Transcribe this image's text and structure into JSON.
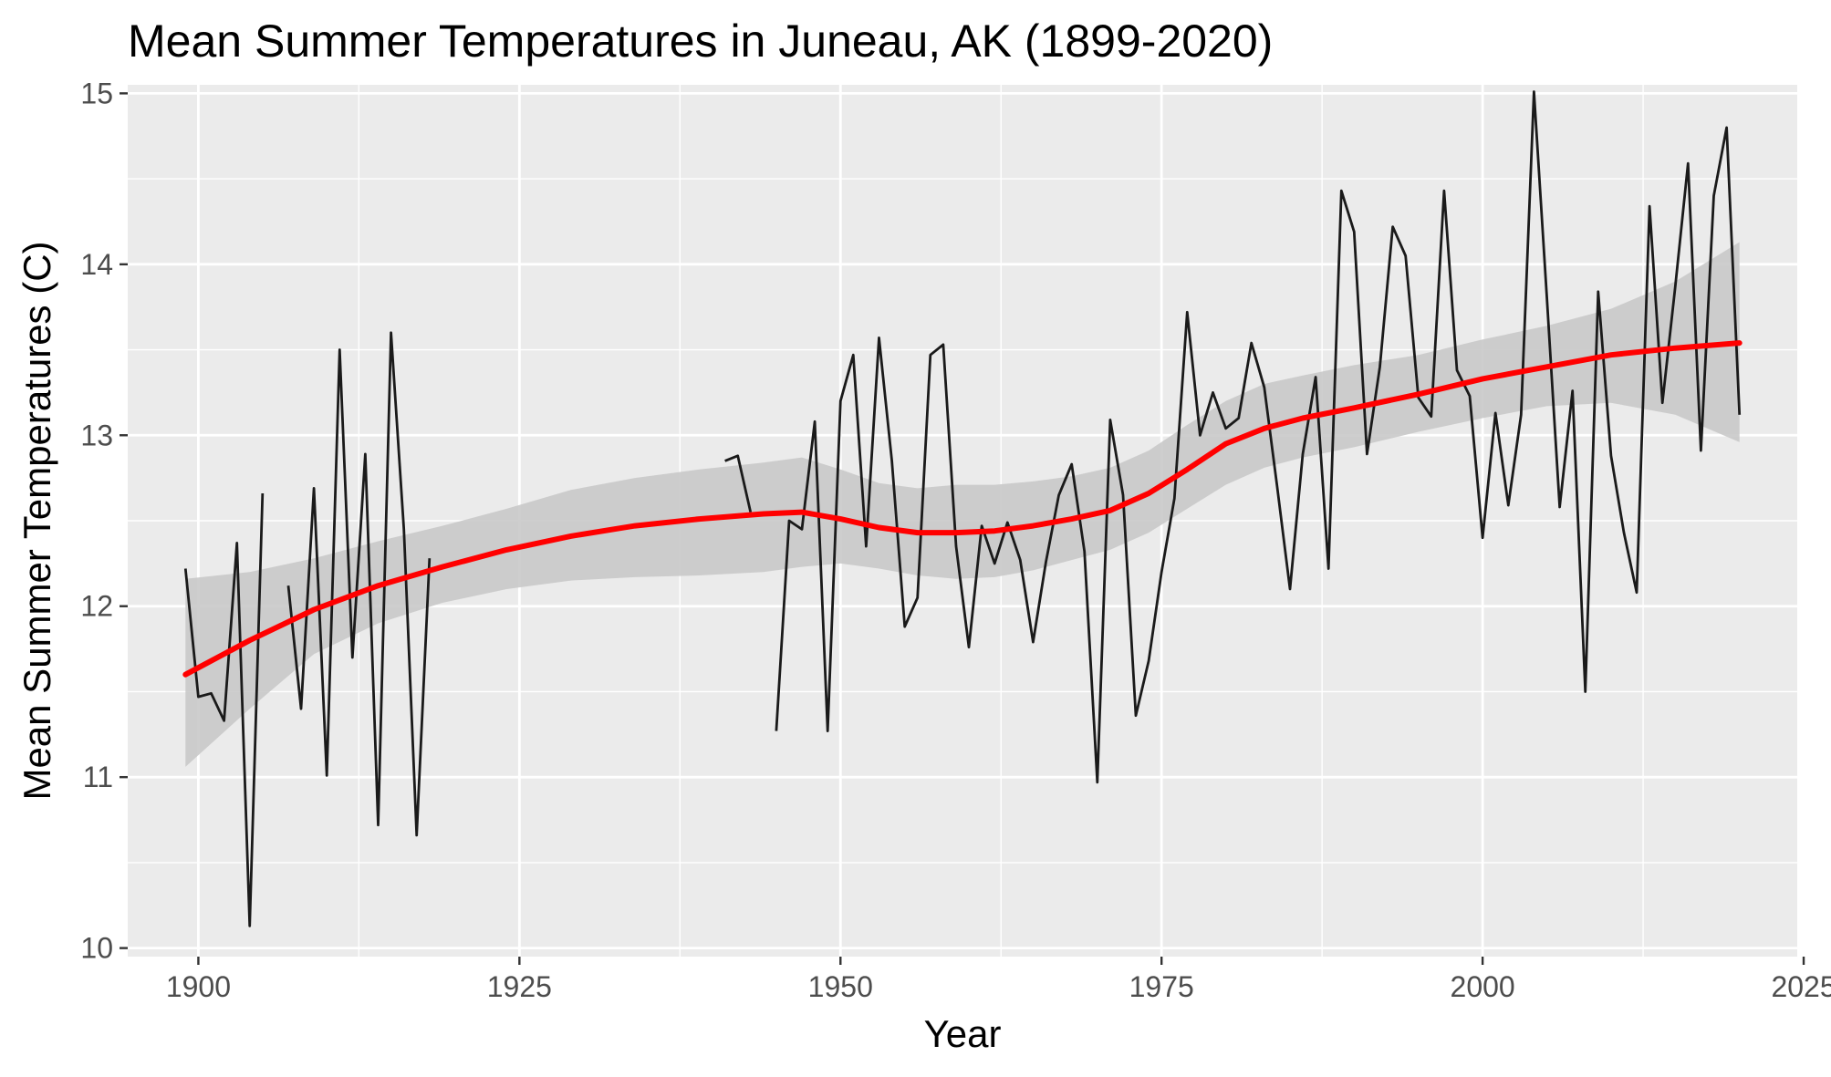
{
  "chart_data": {
    "type": "line",
    "title": "Mean Summer Temperatures in Juneau, AK (1899-2020)",
    "xlabel": "Year",
    "ylabel": "Mean Summer Temperatures (C)",
    "xlim": [
      1894.5,
      2024.5
    ],
    "ylim": [
      9.95,
      15.05
    ],
    "x_ticks": [
      1900,
      1925,
      1950,
      1975,
      2000,
      2025
    ],
    "y_ticks": [
      10,
      11,
      12,
      13,
      14,
      15
    ],
    "x_tick_labels": [
      "1900",
      "1925",
      "1950",
      "1975",
      "2000",
      "2025"
    ],
    "y_tick_labels": [
      "10",
      "11",
      "12",
      "13",
      "14",
      "15"
    ],
    "grid": true,
    "legend": "none",
    "colors": {
      "panel_background": "#ebebeb",
      "grid": "#ffffff",
      "line": "#1a1a1a",
      "smooth": "#ff0000",
      "ribbon": "#c9c9c9"
    },
    "series": [
      {
        "kind": "observed",
        "segments": [
          [
            [
              1899,
              12.22
            ],
            [
              1900,
              11.47
            ],
            [
              1901,
              11.49
            ],
            [
              1902,
              11.33
            ],
            [
              1903,
              12.37
            ],
            [
              1904,
              10.13
            ],
            [
              1905,
              12.66
            ]
          ],
          [
            [
              1907,
              12.12
            ],
            [
              1908,
              11.4
            ],
            [
              1909,
              12.69
            ],
            [
              1910,
              11.01
            ],
            [
              1911,
              13.5
            ],
            [
              1912,
              11.7
            ],
            [
              1913,
              12.89
            ],
            [
              1914,
              10.72
            ],
            [
              1915,
              13.6
            ],
            [
              1916,
              12.45
            ],
            [
              1917,
              10.66
            ],
            [
              1918,
              12.28
            ]
          ],
          [
            [
              1941,
              12.85
            ],
            [
              1942,
              12.88
            ],
            [
              1943,
              12.55
            ]
          ],
          [
            [
              1945,
              11.27
            ],
            [
              1946,
              12.5
            ],
            [
              1947,
              12.45
            ],
            [
              1948,
              13.08
            ],
            [
              1949,
              11.27
            ],
            [
              1950,
              13.2
            ],
            [
              1951,
              13.47
            ],
            [
              1952,
              12.35
            ],
            [
              1953,
              13.57
            ],
            [
              1954,
              12.85
            ],
            [
              1955,
              11.88
            ],
            [
              1956,
              12.05
            ],
            [
              1957,
              13.47
            ],
            [
              1958,
              13.53
            ],
            [
              1959,
              12.35
            ],
            [
              1960,
              11.76
            ],
            [
              1961,
              12.47
            ],
            [
              1962,
              12.25
            ],
            [
              1963,
              12.49
            ],
            [
              1964,
              12.27
            ],
            [
              1965,
              11.79
            ],
            [
              1966,
              12.26
            ],
            [
              1967,
              12.65
            ],
            [
              1968,
              12.83
            ],
            [
              1969,
              12.32
            ],
            [
              1970,
              10.97
            ],
            [
              1971,
              13.09
            ],
            [
              1972,
              12.65
            ],
            [
              1973,
              11.36
            ],
            [
              1974,
              11.68
            ],
            [
              1975,
              12.2
            ],
            [
              1976,
              12.63
            ],
            [
              1977,
              13.72
            ],
            [
              1978,
              13.0
            ],
            [
              1979,
              13.25
            ],
            [
              1980,
              13.04
            ],
            [
              1981,
              13.1
            ],
            [
              1982,
              13.54
            ],
            [
              1983,
              13.28
            ],
            [
              1984,
              12.7
            ],
            [
              1985,
              12.1
            ],
            [
              1986,
              12.89
            ],
            [
              1987,
              13.34
            ],
            [
              1988,
              12.22
            ],
            [
              1989,
              14.43
            ],
            [
              1990,
              14.19
            ],
            [
              1991,
              12.89
            ],
            [
              1992,
              13.4
            ],
            [
              1993,
              14.22
            ],
            [
              1994,
              14.05
            ],
            [
              1995,
              13.22
            ],
            [
              1996,
              13.11
            ],
            [
              1997,
              14.43
            ],
            [
              1998,
              13.38
            ],
            [
              1999,
              13.23
            ],
            [
              2000,
              12.4
            ],
            [
              2001,
              13.13
            ],
            [
              2002,
              12.59
            ],
            [
              2003,
              13.12
            ],
            [
              2004,
              15.01
            ],
            [
              2005,
              13.81
            ],
            [
              2006,
              12.58
            ],
            [
              2007,
              13.26
            ],
            [
              2008,
              11.5
            ],
            [
              2009,
              13.84
            ],
            [
              2010,
              12.88
            ],
            [
              2011,
              12.43
            ],
            [
              2012,
              12.08
            ],
            [
              2013,
              14.34
            ],
            [
              2014,
              13.19
            ],
            [
              2015,
              13.87
            ],
            [
              2016,
              14.59
            ],
            [
              2017,
              12.91
            ],
            [
              2018,
              14.4
            ],
            [
              2019,
              14.8
            ],
            [
              2020,
              13.12
            ]
          ]
        ]
      },
      {
        "kind": "smooth",
        "points": [
          [
            1899,
            11.6
          ],
          [
            1904,
            11.8
          ],
          [
            1909,
            11.98
          ],
          [
            1914,
            12.12
          ],
          [
            1919,
            12.23
          ],
          [
            1924,
            12.33
          ],
          [
            1929,
            12.41
          ],
          [
            1934,
            12.47
          ],
          [
            1939,
            12.51
          ],
          [
            1944,
            12.54
          ],
          [
            1947,
            12.55
          ],
          [
            1950,
            12.51
          ],
          [
            1953,
            12.46
          ],
          [
            1956,
            12.43
          ],
          [
            1959,
            12.43
          ],
          [
            1962,
            12.44
          ],
          [
            1965,
            12.47
          ],
          [
            1968,
            12.51
          ],
          [
            1971,
            12.56
          ],
          [
            1974,
            12.66
          ],
          [
            1977,
            12.8
          ],
          [
            1980,
            12.95
          ],
          [
            1983,
            13.04
          ],
          [
            1986,
            13.1
          ],
          [
            1990,
            13.16
          ],
          [
            1995,
            13.24
          ],
          [
            2000,
            13.33
          ],
          [
            2005,
            13.4
          ],
          [
            2010,
            13.47
          ],
          [
            2015,
            13.51
          ],
          [
            2020,
            13.54
          ]
        ],
        "ci_lower": [
          [
            1899,
            11.06
          ],
          [
            1904,
            11.4
          ],
          [
            1909,
            11.72
          ],
          [
            1914,
            11.9
          ],
          [
            1919,
            12.02
          ],
          [
            1924,
            12.1
          ],
          [
            1929,
            12.15
          ],
          [
            1934,
            12.17
          ],
          [
            1939,
            12.18
          ],
          [
            1944,
            12.2
          ],
          [
            1947,
            12.23
          ],
          [
            1950,
            12.25
          ],
          [
            1953,
            12.22
          ],
          [
            1956,
            12.18
          ],
          [
            1959,
            12.16
          ],
          [
            1962,
            12.17
          ],
          [
            1965,
            12.21
          ],
          [
            1968,
            12.27
          ],
          [
            1971,
            12.33
          ],
          [
            1974,
            12.43
          ],
          [
            1977,
            12.57
          ],
          [
            1980,
            12.71
          ],
          [
            1983,
            12.81
          ],
          [
            1986,
            12.87
          ],
          [
            1990,
            12.93
          ],
          [
            1995,
            13.02
          ],
          [
            2000,
            13.1
          ],
          [
            2005,
            13.17
          ],
          [
            2010,
            13.19
          ],
          [
            2015,
            13.12
          ],
          [
            2020,
            12.96
          ]
        ],
        "ci_upper": [
          [
            1899,
            12.16
          ],
          [
            1904,
            12.2
          ],
          [
            1909,
            12.28
          ],
          [
            1914,
            12.38
          ],
          [
            1919,
            12.47
          ],
          [
            1924,
            12.57
          ],
          [
            1929,
            12.68
          ],
          [
            1934,
            12.75
          ],
          [
            1939,
            12.8
          ],
          [
            1944,
            12.84
          ],
          [
            1947,
            12.87
          ],
          [
            1950,
            12.8
          ],
          [
            1953,
            12.72
          ],
          [
            1956,
            12.69
          ],
          [
            1959,
            12.71
          ],
          [
            1962,
            12.71
          ],
          [
            1965,
            12.73
          ],
          [
            1968,
            12.76
          ],
          [
            1971,
            12.81
          ],
          [
            1974,
            12.91
          ],
          [
            1977,
            13.06
          ],
          [
            1980,
            13.2
          ],
          [
            1983,
            13.3
          ],
          [
            1986,
            13.35
          ],
          [
            1990,
            13.41
          ],
          [
            1995,
            13.47
          ],
          [
            2000,
            13.56
          ],
          [
            2005,
            13.64
          ],
          [
            2010,
            13.74
          ],
          [
            2015,
            13.9
          ],
          [
            2020,
            14.13
          ]
        ]
      }
    ]
  }
}
